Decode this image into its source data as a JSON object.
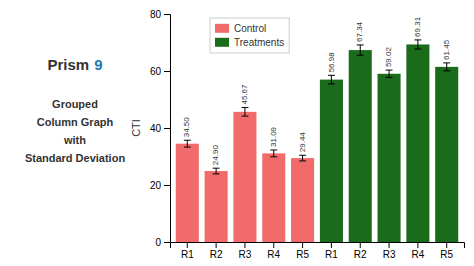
{
  "chart_data": {
    "type": "bar",
    "annotations": [
      "Prism",
      "9",
      "Grouped",
      "Column Graph",
      "with",
      "Standard Deviation"
    ],
    "y_label": "CTI",
    "categories": [
      "R1",
      "R2",
      "R3",
      "R4",
      "R5",
      "R1",
      "R2",
      "R3",
      "R4",
      "R5"
    ],
    "series": [
      {
        "name": "Control",
        "color": "#F26B6B",
        "values": [
          34.5,
          24.9,
          45.67,
          31.09,
          29.44,
          null,
          null,
          null,
          null,
          null
        ],
        "errors": [
          1.2,
          1.0,
          1.5,
          1.2,
          1.0,
          null,
          null,
          null,
          null,
          null
        ],
        "value_labels": [
          "34.50",
          "24.90",
          "45.67",
          "31.09",
          "29.44",
          null,
          null,
          null,
          null,
          null
        ]
      },
      {
        "name": "Treatments",
        "color": "#1A6B1A",
        "values": [
          null,
          null,
          null,
          null,
          null,
          56.98,
          67.34,
          59.02,
          69.31,
          61.45
        ],
        "errors": [
          null,
          null,
          null,
          null,
          null,
          1.5,
          1.8,
          1.3,
          1.6,
          1.4
        ],
        "value_labels": [
          null,
          null,
          null,
          null,
          null,
          "56.98",
          "67.34",
          "59.02",
          "69.31",
          "61.45"
        ]
      }
    ],
    "ylim": [
      0,
      80
    ],
    "yticks": [
      0,
      20,
      40,
      60,
      80
    ],
    "data_labels": true,
    "legend": "upper left",
    "grid": false
  }
}
